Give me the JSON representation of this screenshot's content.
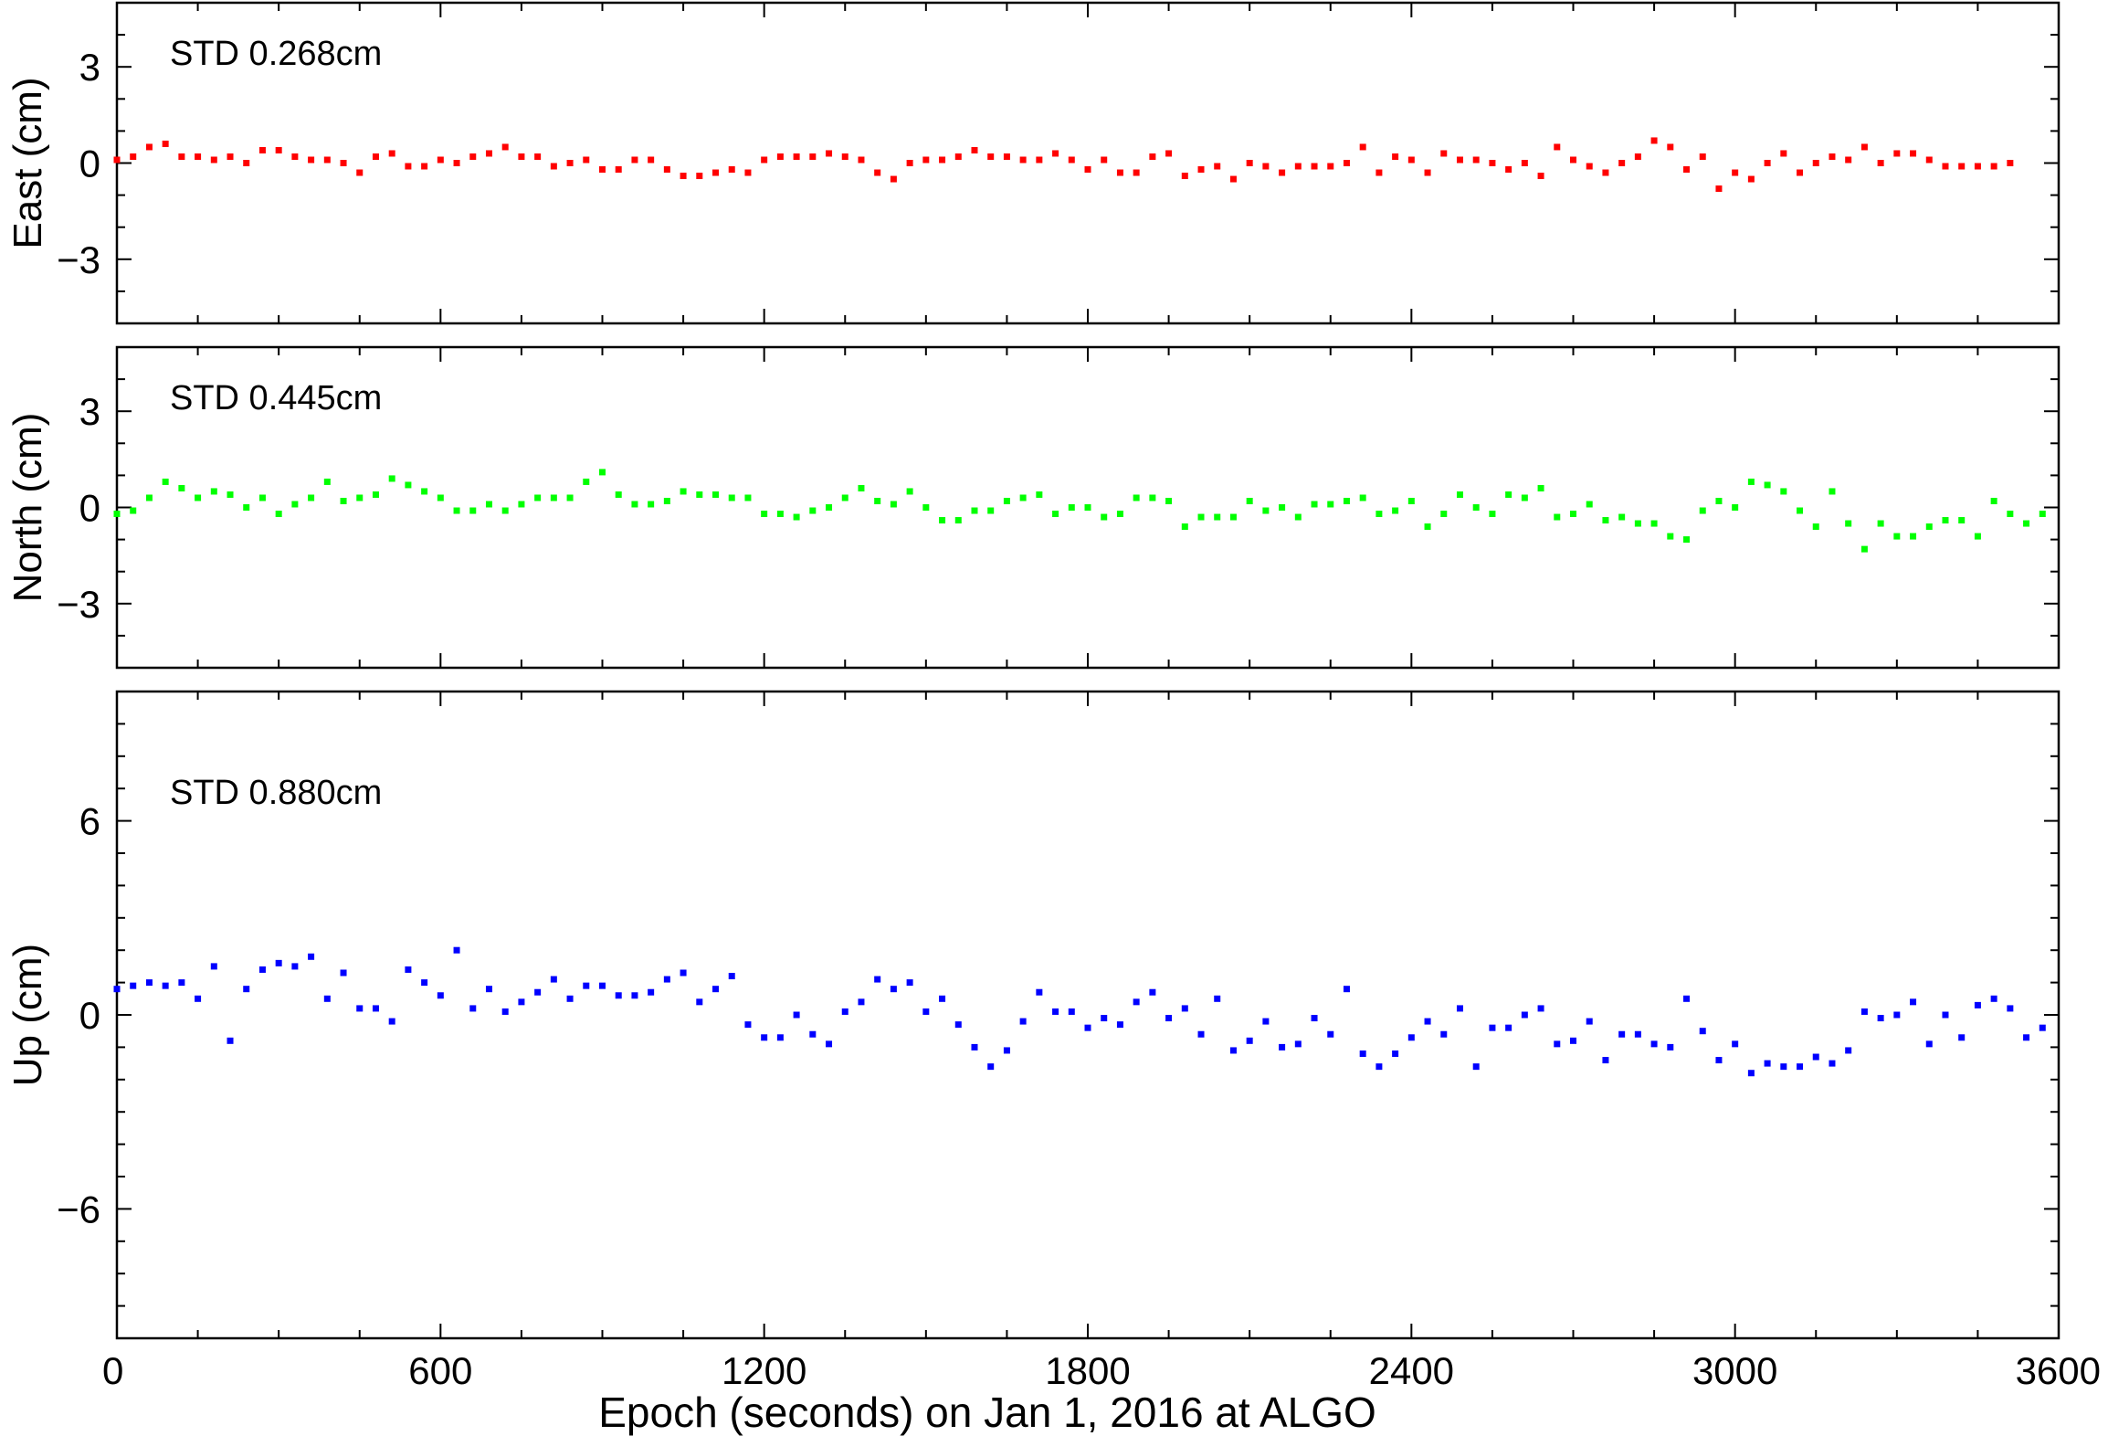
{
  "chart_data": [
    {
      "type": "scatter",
      "panel": "east",
      "ylabel": "East (cm)",
      "annotation": "STD 0.268cm",
      "color": "#ff0000",
      "ylim": [
        -5,
        5
      ],
      "yticks": [
        -3,
        0,
        3
      ],
      "yticklabels": [
        "−3",
        "0",
        "3"
      ],
      "xlim": [
        0,
        3600
      ],
      "x_start": 0,
      "x_step": 30,
      "y": [
        0.1,
        0.2,
        0.5,
        0.6,
        0.2,
        0.2,
        0.1,
        0.2,
        0.0,
        0.4,
        0.4,
        0.2,
        0.1,
        0.1,
        0.0,
        -0.3,
        0.2,
        0.3,
        -0.1,
        -0.1,
        0.1,
        0.0,
        0.2,
        0.3,
        0.5,
        0.2,
        0.2,
        -0.1,
        0.0,
        0.1,
        -0.2,
        -0.2,
        0.1,
        0.1,
        -0.2,
        -0.4,
        -0.4,
        -0.3,
        -0.2,
        -0.3,
        0.1,
        0.2,
        0.2,
        0.2,
        0.3,
        0.2,
        0.1,
        -0.3,
        -0.5,
        0.0,
        0.1,
        0.1,
        0.2,
        0.4,
        0.2,
        0.2,
        0.1,
        0.1,
        0.3,
        0.1,
        -0.2,
        0.1,
        -0.3,
        -0.3,
        0.2,
        0.3,
        -0.4,
        -0.2,
        -0.1,
        -0.5,
        0.0,
        -0.1,
        -0.3,
        -0.1,
        -0.1,
        -0.1,
        0.0,
        0.5,
        -0.3,
        0.2,
        0.1,
        -0.3,
        0.3,
        0.1,
        0.1,
        0.0,
        -0.2,
        0.0,
        -0.4,
        0.5,
        0.1,
        -0.1,
        -0.3,
        0.0,
        0.2,
        0.7,
        0.5,
        -0.2,
        0.2,
        -0.8,
        -0.3,
        -0.5,
        0.0,
        0.3,
        -0.3,
        0.0,
        0.2,
        0.1,
        0.5,
        0.0,
        0.3,
        0.3,
        0.1,
        -0.1,
        -0.1,
        -0.1,
        -0.1,
        0.0
      ]
    },
    {
      "type": "scatter",
      "panel": "north",
      "ylabel": "North (cm)",
      "annotation": "STD 0.445cm",
      "color": "#00ff00",
      "ylim": [
        -5,
        5
      ],
      "yticks": [
        -3,
        0,
        3
      ],
      "yticklabels": [
        "−3",
        "0",
        "3"
      ],
      "xlim": [
        0,
        3600
      ],
      "x_start": 0,
      "x_step": 30,
      "y": [
        -0.2,
        -0.1,
        0.3,
        0.8,
        0.6,
        0.3,
        0.5,
        0.4,
        0.0,
        0.3,
        -0.2,
        0.1,
        0.3,
        0.8,
        0.2,
        0.3,
        0.4,
        0.9,
        0.7,
        0.5,
        0.3,
        -0.1,
        -0.1,
        0.1,
        -0.1,
        0.1,
        0.3,
        0.3,
        0.3,
        0.8,
        1.1,
        0.4,
        0.1,
        0.1,
        0.2,
        0.5,
        0.4,
        0.4,
        0.3,
        0.3,
        -0.2,
        -0.2,
        -0.3,
        -0.1,
        0.0,
        0.3,
        0.6,
        0.2,
        0.1,
        0.5,
        0.0,
        -0.4,
        -0.4,
        -0.1,
        -0.1,
        0.2,
        0.3,
        0.4,
        -0.2,
        0.0,
        0.0,
        -0.3,
        -0.2,
        0.3,
        0.3,
        0.2,
        -0.6,
        -0.3,
        -0.3,
        -0.3,
        0.2,
        -0.1,
        0.0,
        -0.3,
        0.1,
        0.1,
        0.2,
        0.3,
        -0.2,
        -0.1,
        0.2,
        -0.6,
        -0.2,
        0.4,
        0.0,
        -0.2,
        0.4,
        0.3,
        0.6,
        -0.3,
        -0.2,
        0.1,
        -0.4,
        -0.3,
        -0.5,
        -0.5,
        -0.9,
        -1.0,
        -0.1,
        0.2,
        0.0,
        0.8,
        0.7,
        0.5,
        -0.1,
        -0.6,
        0.5,
        -0.5,
        -1.3,
        -0.5,
        -0.9,
        -0.9,
        -0.6,
        -0.4,
        -0.4,
        -0.9,
        0.2,
        -0.2,
        -0.5,
        -0.2
      ]
    },
    {
      "type": "scatter",
      "panel": "up",
      "ylabel": "Up (cm)",
      "annotation": "STD 0.880cm",
      "color": "#0000ff",
      "ylim": [
        -10,
        10
      ],
      "yticks": [
        -6,
        0,
        6
      ],
      "yticklabels": [
        "−6",
        "0",
        "6"
      ],
      "xlim": [
        0,
        3600
      ],
      "xticks": [
        0,
        600,
        1200,
        1800,
        2400,
        3000,
        3600
      ],
      "xticklabels": [
        "0",
        "600",
        "1200",
        "1800",
        "2400",
        "3000",
        "3600"
      ],
      "xlabel": "Epoch (seconds) on Jan 1, 2016 at ALGO",
      "x_start": 0,
      "x_step": 30,
      "y": [
        0.8,
        0.9,
        1.0,
        0.9,
        1.0,
        0.5,
        1.5,
        -0.8,
        0.8,
        1.4,
        1.6,
        1.5,
        1.8,
        0.5,
        1.3,
        0.2,
        0.2,
        -0.2,
        1.4,
        1.0,
        0.6,
        2.0,
        0.2,
        0.8,
        0.1,
        0.4,
        0.7,
        1.1,
        0.5,
        0.9,
        0.9,
        0.6,
        0.6,
        0.7,
        1.1,
        1.3,
        0.4,
        0.8,
        1.2,
        -0.3,
        -0.7,
        -0.7,
        0.0,
        -0.6,
        -0.9,
        0.1,
        0.4,
        1.1,
        0.8,
        1.0,
        0.1,
        0.5,
        -0.3,
        -1.0,
        -1.6,
        -1.1,
        -0.2,
        0.7,
        0.1,
        0.1,
        -0.4,
        -0.1,
        -0.3,
        0.4,
        0.7,
        -0.1,
        0.2,
        -0.6,
        0.5,
        -1.1,
        -0.8,
        -0.2,
        -1.0,
        -0.9,
        -0.1,
        -0.6,
        0.8,
        -1.2,
        -1.6,
        -1.2,
        -0.7,
        -0.2,
        -0.6,
        0.2,
        -1.6,
        -0.4,
        -0.4,
        0.0,
        0.2,
        -0.9,
        -0.8,
        -0.2,
        -1.4,
        -0.6,
        -0.6,
        -0.9,
        -1.0,
        0.5,
        -0.5,
        -1.4,
        -0.9,
        -1.8,
        -1.5,
        -1.6,
        -1.6,
        -1.3,
        -1.5,
        -1.1,
        0.1,
        -0.1,
        0.0,
        0.4,
        -0.9,
        0.0,
        -0.7,
        0.3,
        0.5,
        0.2,
        -0.7,
        -0.4
      ]
    }
  ]
}
